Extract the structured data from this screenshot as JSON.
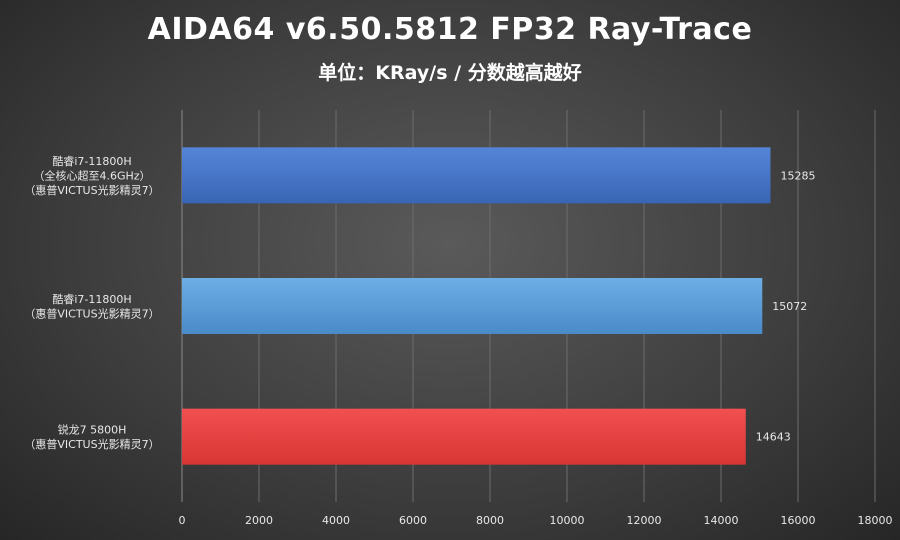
{
  "chart_data": {
    "type": "bar",
    "orientation": "horizontal",
    "title": "AIDA64 v6.50.5812 FP32 Ray-Trace",
    "subtitle": "单位：KRay/s / 分数越高越好",
    "categories": [
      [
        "酷睿i7-11800H",
        "（全核心超至4.6GHz）",
        "（惠普VICTUS光影精灵7）"
      ],
      [
        "酷睿i7-11800H",
        "（惠普VICTUS光影精灵7）"
      ],
      [
        "锐龙7 5800H",
        "（惠普VICTUS光影精灵7）"
      ]
    ],
    "values": [
      15285,
      15072,
      14643
    ],
    "value_labels": [
      "15285",
      "15072",
      "14643"
    ],
    "colors": [
      "#4472c4",
      "#5b9bd5",
      "#e84040"
    ],
    "xlim": [
      0,
      18000
    ],
    "ticks": [
      0,
      2000,
      4000,
      6000,
      8000,
      10000,
      12000,
      14000,
      16000,
      18000
    ],
    "tick_labels": [
      "0",
      "2000",
      "4000",
      "6000",
      "8000",
      "10000",
      "12000",
      "14000",
      "16000",
      "18000"
    ],
    "grid": true,
    "legend": false
  }
}
